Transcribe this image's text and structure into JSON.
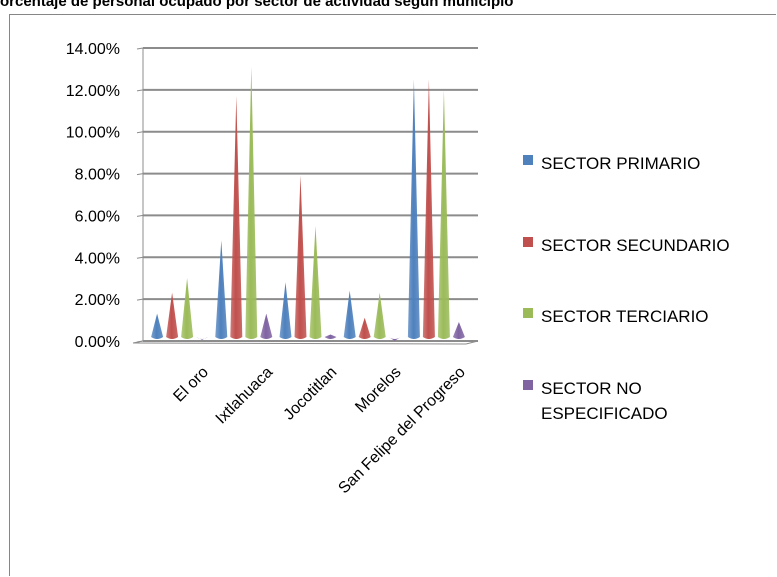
{
  "header": {
    "title": "orcentaje de personal ocupado por sector de actividad según municipio"
  },
  "colors": {
    "sector_primario": "#4f81bd",
    "sector_secundario": "#c0504d",
    "sector_terciario": "#9bbb59",
    "sector_no_especificado": "#8064a2"
  },
  "chart_data": {
    "type": "bar",
    "style": "3d-cone",
    "title": "orcentaje de personal ocupado por sector de actividad según municipio",
    "categories": [
      "El oro",
      "Ixtlahuaca",
      "Jocotitlan",
      "Morelos",
      "San Felipe del Progreso"
    ],
    "yticks": [
      "0.00%",
      "2.00%",
      "4.00%",
      "6.00%",
      "8.00%",
      "10.00%",
      "12.00%",
      "14.00%"
    ],
    "ylim": [
      0,
      14
    ],
    "grid": true,
    "legend_position": "right",
    "series": [
      {
        "name": "SECTOR PRIMARIO",
        "color": "#4f81bd",
        "values": [
          1.5,
          5.0,
          3.0,
          2.6,
          12.7
        ]
      },
      {
        "name": "SECTOR SECUNDARIO",
        "color": "#c0504d",
        "values": [
          2.5,
          11.9,
          8.1,
          1.3,
          12.7
        ]
      },
      {
        "name": "SECTOR TERCIARIO",
        "color": "#9bbb59",
        "values": [
          3.2,
          13.3,
          5.7,
          2.5,
          12.2
        ]
      },
      {
        "name": "SECTOR NO ESPECIFICADO",
        "color": "#8064a2",
        "values": [
          0.25,
          1.5,
          0.5,
          0.2,
          1.1
        ]
      }
    ]
  }
}
